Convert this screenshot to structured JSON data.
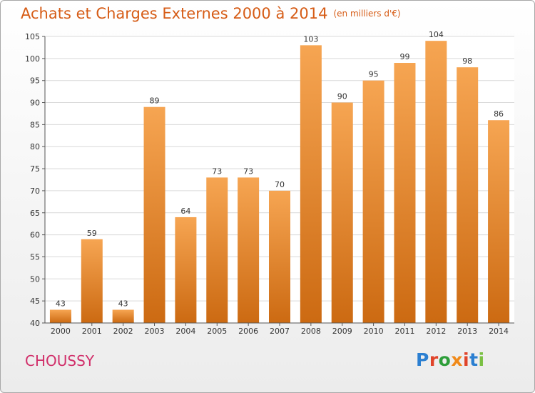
{
  "header": {
    "title": "Achats et Charges Externes 2000 à 2014",
    "unit": "(en milliers d'€)"
  },
  "footer": {
    "commune": "CHOUSSY",
    "logo": "Proxiti",
    "logo_colors": [
      "#2b7fd1",
      "#e0442a",
      "#2e9e3a",
      "#f08a1a",
      "#e0442a",
      "#2b7fd1",
      "#7ac043"
    ]
  },
  "colors": {
    "bar_light": "#f6a552",
    "bar_dark": "#cc6a12",
    "grid": "#d9d9d9",
    "axis": "#555555",
    "title": "#d65c16",
    "commune": "#d12f6a"
  },
  "chart_data": {
    "type": "bar",
    "title": "Achats et Charges Externes 2000 à 2014",
    "subtitle": "(en milliers d'€)",
    "categories": [
      "2000",
      "2001",
      "2002",
      "2003",
      "2004",
      "2005",
      "2006",
      "2007",
      "2008",
      "2009",
      "2010",
      "2011",
      "2012",
      "2013",
      "2014"
    ],
    "values": [
      43,
      59,
      43,
      89,
      64,
      73,
      73,
      70,
      103,
      90,
      95,
      99,
      104,
      98,
      86
    ],
    "ylim": [
      40,
      105
    ],
    "yticks": [
      40,
      45,
      50,
      55,
      60,
      65,
      70,
      75,
      80,
      85,
      90,
      95,
      100,
      105
    ],
    "grid": true,
    "data_labels": true,
    "xlabel": "",
    "ylabel": ""
  }
}
